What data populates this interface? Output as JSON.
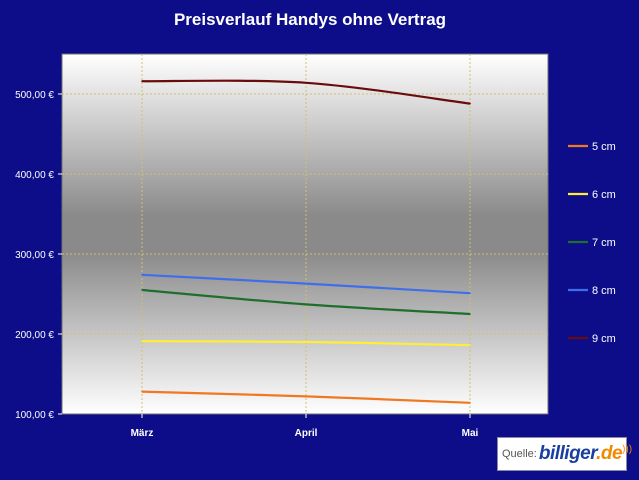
{
  "chart_data": {
    "type": "line",
    "title": "Preisverlauf Handys ohne Vertrag",
    "categories": [
      "März",
      "April",
      "Mai"
    ],
    "y_ticks": [
      "100,00 €",
      "200,00 €",
      "300,00 €",
      "400,00 €",
      "500,00 €"
    ],
    "ylim": [
      100,
      550
    ],
    "grid": true,
    "legend_position": "right",
    "series": [
      {
        "name": "5 cm",
        "color": "#f07820",
        "values": [
          128,
          122,
          114
        ]
      },
      {
        "name": "6 cm",
        "color": "#ffee33",
        "values": [
          191,
          190,
          186
        ]
      },
      {
        "name": "7 cm",
        "color": "#1f6f2a",
        "values": [
          255,
          237,
          225
        ]
      },
      {
        "name": "8 cm",
        "color": "#3f6fe8",
        "values": [
          274,
          263,
          251
        ]
      },
      {
        "name": "9 cm",
        "color": "#6b0c0c",
        "values": [
          516,
          514,
          488
        ]
      }
    ]
  },
  "source": {
    "label": "Quelle:",
    "logo_main": "billiger",
    "logo_tld": ".de"
  },
  "colors": {
    "background": "#0d0d8a",
    "grid": "#d0c070"
  }
}
